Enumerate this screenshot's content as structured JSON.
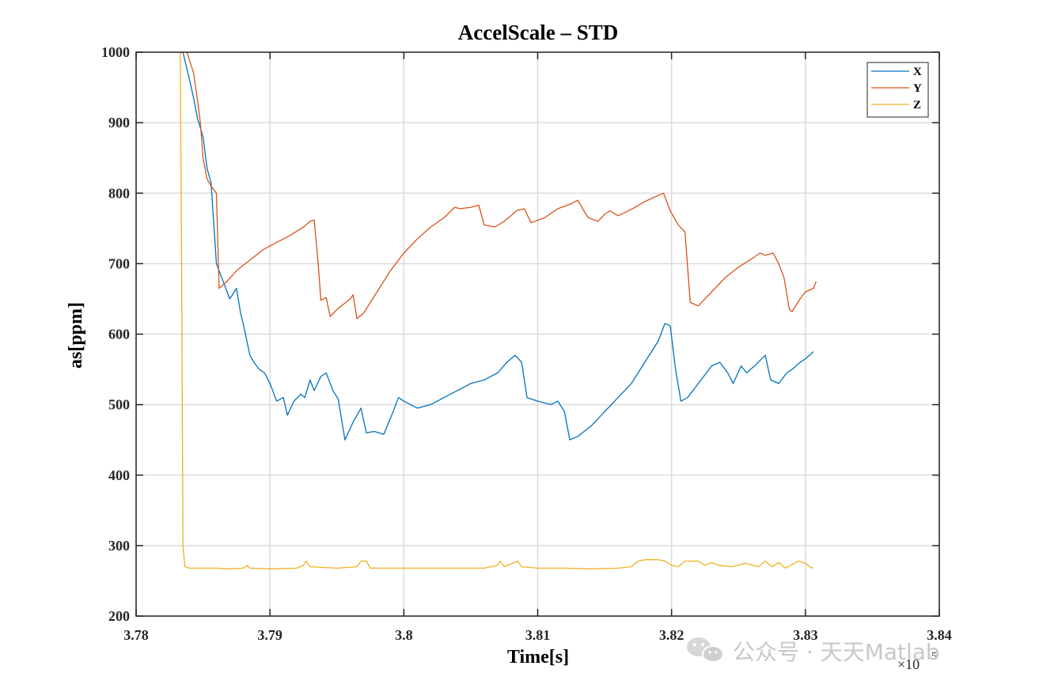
{
  "chart_data": {
    "type": "line",
    "title": "AccelScale – STD",
    "xlabel": "Time[s]",
    "ylabel": "as[ppm]",
    "x_exponent_label": "×10",
    "x_exponent_power": "5",
    "xlim": [
      378000,
      384000
    ],
    "ylim": [
      200,
      1000
    ],
    "xticks": [
      378000,
      379000,
      380000,
      381000,
      382000,
      383000,
      384000
    ],
    "xtick_labels": [
      "3.78",
      "3.79",
      "3.8",
      "3.81",
      "3.82",
      "3.83",
      "3.84"
    ],
    "yticks": [
      200,
      300,
      400,
      500,
      600,
      700,
      800,
      900,
      1000
    ],
    "ytick_labels": [
      "200",
      "300",
      "400",
      "500",
      "600",
      "700",
      "800",
      "900",
      "1000"
    ],
    "grid": true,
    "legend_position": "top-right",
    "series": [
      {
        "name": "X",
        "color": "#0072BD",
        "points": [
          [
            378350,
            1000
          ],
          [
            378400,
            960
          ],
          [
            378430,
            935
          ],
          [
            378460,
            905
          ],
          [
            378500,
            880
          ],
          [
            378530,
            835
          ],
          [
            378560,
            815
          ],
          [
            378600,
            700
          ],
          [
            378660,
            670
          ],
          [
            378700,
            650
          ],
          [
            378750,
            665
          ],
          [
            378780,
            630
          ],
          [
            378800,
            615
          ],
          [
            378850,
            570
          ],
          [
            378880,
            560
          ],
          [
            378920,
            550
          ],
          [
            378960,
            545
          ],
          [
            379000,
            530
          ],
          [
            379050,
            505
          ],
          [
            379100,
            510
          ],
          [
            379130,
            485
          ],
          [
            379180,
            505
          ],
          [
            379230,
            515
          ],
          [
            379260,
            510
          ],
          [
            379300,
            535
          ],
          [
            379330,
            520
          ],
          [
            379380,
            540
          ],
          [
            379420,
            545
          ],
          [
            379470,
            520
          ],
          [
            379510,
            508
          ],
          [
            379560,
            450
          ],
          [
            379620,
            475
          ],
          [
            379680,
            495
          ],
          [
            379720,
            460
          ],
          [
            379780,
            462
          ],
          [
            379850,
            458
          ],
          [
            379920,
            490
          ],
          [
            379960,
            510
          ],
          [
            380000,
            505
          ],
          [
            380050,
            500
          ],
          [
            380100,
            495
          ],
          [
            380200,
            500
          ],
          [
            380300,
            510
          ],
          [
            380400,
            520
          ],
          [
            380500,
            530
          ],
          [
            380600,
            535
          ],
          [
            380700,
            545
          ],
          [
            380770,
            560
          ],
          [
            380830,
            570
          ],
          [
            380880,
            560
          ],
          [
            380920,
            510
          ],
          [
            381000,
            505
          ],
          [
            381100,
            500
          ],
          [
            381150,
            505
          ],
          [
            381200,
            490
          ],
          [
            381240,
            450
          ],
          [
            381300,
            455
          ],
          [
            381400,
            470
          ],
          [
            381500,
            490
          ],
          [
            381600,
            510
          ],
          [
            381700,
            530
          ],
          [
            381800,
            560
          ],
          [
            381900,
            590
          ],
          [
            381950,
            615
          ],
          [
            381990,
            612
          ],
          [
            382030,
            550
          ],
          [
            382070,
            505
          ],
          [
            382120,
            510
          ],
          [
            382200,
            530
          ],
          [
            382300,
            555
          ],
          [
            382360,
            560
          ],
          [
            382420,
            545
          ],
          [
            382460,
            530
          ],
          [
            382520,
            555
          ],
          [
            382560,
            545
          ],
          [
            382620,
            555
          ],
          [
            382700,
            570
          ],
          [
            382740,
            535
          ],
          [
            382800,
            530
          ],
          [
            382860,
            545
          ],
          [
            382900,
            550
          ],
          [
            382960,
            560
          ],
          [
            383000,
            565
          ],
          [
            383060,
            575
          ]
        ]
      },
      {
        "name": "Y",
        "color": "#D95319",
        "points": [
          [
            378380,
            1000
          ],
          [
            378430,
            970
          ],
          [
            378460,
            930
          ],
          [
            378480,
            900
          ],
          [
            378500,
            850
          ],
          [
            378530,
            820
          ],
          [
            378560,
            810
          ],
          [
            378600,
            800
          ],
          [
            378620,
            665
          ],
          [
            378680,
            675
          ],
          [
            378750,
            690
          ],
          [
            378850,
            705
          ],
          [
            378950,
            720
          ],
          [
            379050,
            730
          ],
          [
            379150,
            740
          ],
          [
            379250,
            752
          ],
          [
            379300,
            760
          ],
          [
            379330,
            762
          ],
          [
            379360,
            700
          ],
          [
            379380,
            648
          ],
          [
            379420,
            652
          ],
          [
            379450,
            625
          ],
          [
            379500,
            635
          ],
          [
            379600,
            650
          ],
          [
            379620,
            656
          ],
          [
            379650,
            622
          ],
          [
            379700,
            630
          ],
          [
            379800,
            660
          ],
          [
            379900,
            690
          ],
          [
            380000,
            715
          ],
          [
            380100,
            735
          ],
          [
            380200,
            752
          ],
          [
            380300,
            765
          ],
          [
            380380,
            780
          ],
          [
            380420,
            778
          ],
          [
            380500,
            780
          ],
          [
            380560,
            783
          ],
          [
            380600,
            755
          ],
          [
            380680,
            752
          ],
          [
            380750,
            760
          ],
          [
            380800,
            768
          ],
          [
            380840,
            775
          ],
          [
            380900,
            778
          ],
          [
            380950,
            758
          ],
          [
            381050,
            765
          ],
          [
            381150,
            778
          ],
          [
            381250,
            785
          ],
          [
            381300,
            790
          ],
          [
            381360,
            770
          ],
          [
            381380,
            765
          ],
          [
            381450,
            760
          ],
          [
            381500,
            770
          ],
          [
            381540,
            775
          ],
          [
            381600,
            768
          ],
          [
            381700,
            777
          ],
          [
            381800,
            788
          ],
          [
            381880,
            795
          ],
          [
            381940,
            800
          ],
          [
            381990,
            775
          ],
          [
            382050,
            755
          ],
          [
            382100,
            745
          ],
          [
            382140,
            645
          ],
          [
            382200,
            640
          ],
          [
            382300,
            660
          ],
          [
            382400,
            680
          ],
          [
            382500,
            695
          ],
          [
            382600,
            707
          ],
          [
            382660,
            715
          ],
          [
            382700,
            712
          ],
          [
            382760,
            715
          ],
          [
            382800,
            700
          ],
          [
            382840,
            680
          ],
          [
            382880,
            635
          ],
          [
            382900,
            632
          ],
          [
            382960,
            650
          ],
          [
            383000,
            660
          ],
          [
            383060,
            665
          ],
          [
            383080,
            675
          ]
        ]
      },
      {
        "name": "Z",
        "color": "#EDB120",
        "points": [
          [
            378330,
            1000
          ],
          [
            378340,
            700
          ],
          [
            378350,
            300
          ],
          [
            378365,
            270
          ],
          [
            378400,
            268
          ],
          [
            378600,
            268
          ],
          [
            378700,
            267
          ],
          [
            378800,
            268
          ],
          [
            378830,
            272
          ],
          [
            378850,
            268
          ],
          [
            379000,
            267
          ],
          [
            379200,
            268
          ],
          [
            379250,
            272
          ],
          [
            379270,
            278
          ],
          [
            379300,
            270
          ],
          [
            379500,
            268
          ],
          [
            379650,
            270
          ],
          [
            379680,
            278
          ],
          [
            379720,
            278
          ],
          [
            379750,
            268
          ],
          [
            380000,
            268
          ],
          [
            380300,
            268
          ],
          [
            380600,
            268
          ],
          [
            380700,
            272
          ],
          [
            380720,
            278
          ],
          [
            380750,
            270
          ],
          [
            380850,
            278
          ],
          [
            380880,
            270
          ],
          [
            381000,
            268
          ],
          [
            381200,
            268
          ],
          [
            381400,
            267
          ],
          [
            381600,
            268
          ],
          [
            381700,
            270
          ],
          [
            381750,
            278
          ],
          [
            381800,
            280
          ],
          [
            381900,
            280
          ],
          [
            381950,
            278
          ],
          [
            382000,
            272
          ],
          [
            382050,
            270
          ],
          [
            382100,
            278
          ],
          [
            382200,
            278
          ],
          [
            382250,
            272
          ],
          [
            382300,
            276
          ],
          [
            382350,
            272
          ],
          [
            382450,
            270
          ],
          [
            382550,
            275
          ],
          [
            382650,
            270
          ],
          [
            382700,
            278
          ],
          [
            382750,
            270
          ],
          [
            382800,
            276
          ],
          [
            382850,
            268
          ],
          [
            382950,
            278
          ],
          [
            383000,
            275
          ],
          [
            383030,
            270
          ],
          [
            383060,
            268
          ]
        ]
      }
    ]
  },
  "watermark": "公众号 · 天天Matlab"
}
